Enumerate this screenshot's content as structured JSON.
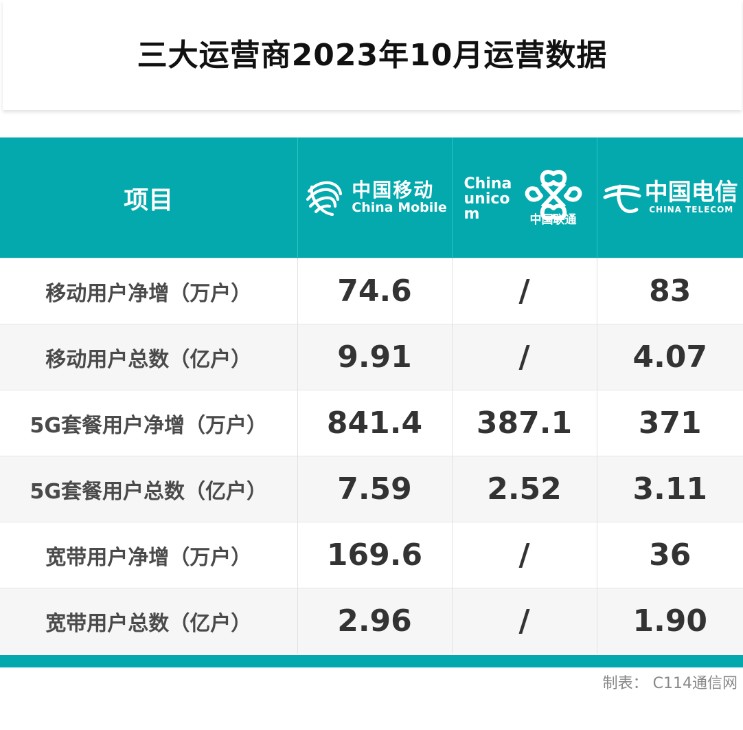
{
  "title": "三大运营商2023年10月运营数据",
  "chart_data": {
    "type": "table",
    "columns": [
      "项目",
      "中国移动",
      "中国联通",
      "中国电信"
    ],
    "rows": [
      {
        "label": "移动用户净增（万户）",
        "values": [
          "74.6",
          "/",
          "83"
        ]
      },
      {
        "label": "移动用户总数（亿户）",
        "values": [
          "9.91",
          "/",
          "4.07"
        ]
      },
      {
        "label": "5G套餐用户净增（万户）",
        "values": [
          "841.4",
          "387.1",
          "371"
        ]
      },
      {
        "label": "5G套餐用户总数（亿户）",
        "values": [
          "7.59",
          "2.52",
          "3.11"
        ]
      },
      {
        "label": "宽带用户净增（万户）",
        "values": [
          "169.6",
          "/",
          "36"
        ]
      },
      {
        "label": "宽带用户总数（亿户）",
        "values": [
          "2.96",
          "/",
          "1.90"
        ]
      }
    ]
  },
  "logos": {
    "china_mobile": {
      "cn": "中国移动",
      "en": "China Mobile",
      "icon": "china-mobile-logo"
    },
    "china_unicom": {
      "en": "China unicom",
      "cn": "中国联通",
      "icon": "china-unicom-knot-logo"
    },
    "china_telecom": {
      "cn": "中国电信",
      "en": "CHINA TELECOM",
      "icon": "china-telecom-logo"
    }
  },
  "colors": {
    "header": "#03a9ad",
    "text": "#333333",
    "source": "#888888"
  },
  "source": "制表：  C114通信网"
}
